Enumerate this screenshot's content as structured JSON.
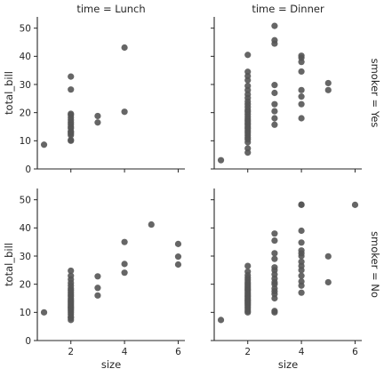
{
  "chart_data": {
    "type": "scatter",
    "x_variable": "size",
    "y_variable": "total_bill",
    "xlim": [
      0.75,
      6.25
    ],
    "ylim": [
      0,
      54
    ],
    "x_ticks": [
      2,
      4,
      6
    ],
    "y_ticks": [
      0,
      10,
      20,
      30,
      40,
      50
    ],
    "grid": false,
    "marker_color": "#555555",
    "axis_color": "#262626",
    "columns": [
      {
        "label": "time = Lunch"
      },
      {
        "label": "time = Dinner"
      }
    ],
    "rows": [
      {
        "label": "smoker = Yes"
      },
      {
        "label": "smoker = No"
      }
    ],
    "panels": [
      {
        "row": 0,
        "col": 0,
        "x_label": "",
        "y_label": "total_bill",
        "points": [
          [
            1,
            8.6
          ],
          [
            2,
            10.0
          ],
          [
            2,
            10.3
          ],
          [
            2,
            12.0
          ],
          [
            2,
            12.5
          ],
          [
            2,
            13.0
          ],
          [
            2,
            13.4
          ],
          [
            2,
            14.5
          ],
          [
            2,
            15.0
          ],
          [
            2,
            15.8
          ],
          [
            2,
            16.5
          ],
          [
            2,
            17.4
          ],
          [
            2,
            18.3
          ],
          [
            2,
            19.2
          ],
          [
            2,
            19.6
          ],
          [
            2,
            28.2
          ],
          [
            2,
            32.8
          ],
          [
            3,
            18.8
          ],
          [
            3,
            16.5
          ],
          [
            4,
            43.1
          ],
          [
            4,
            20.3
          ]
        ]
      },
      {
        "row": 0,
        "col": 1,
        "x_label": "",
        "y_label": "",
        "points": [
          [
            1,
            3.1
          ],
          [
            2,
            5.8
          ],
          [
            2,
            7.3
          ],
          [
            2,
            9.5
          ],
          [
            2,
            10.5
          ],
          [
            2,
            11.2
          ],
          [
            2,
            12.0
          ],
          [
            2,
            12.8
          ],
          [
            2,
            13.5
          ],
          [
            2,
            14.3
          ],
          [
            2,
            15.0
          ],
          [
            2,
            15.7
          ],
          [
            2,
            16.3
          ],
          [
            2,
            17.0
          ],
          [
            2,
            17.7
          ],
          [
            2,
            18.5
          ],
          [
            2,
            19.4
          ],
          [
            2,
            20.3
          ],
          [
            2,
            21.0
          ],
          [
            2,
            22.0
          ],
          [
            2,
            23.0
          ],
          [
            2,
            24.0
          ],
          [
            2,
            25.2
          ],
          [
            2,
            26.5
          ],
          [
            2,
            28.0
          ],
          [
            2,
            29.5
          ],
          [
            2,
            31.5
          ],
          [
            2,
            33.0
          ],
          [
            2,
            34.5
          ],
          [
            2,
            40.5
          ],
          [
            3,
            15.7
          ],
          [
            3,
            18.0
          ],
          [
            3,
            20.5
          ],
          [
            3,
            23.0
          ],
          [
            3,
            27.0
          ],
          [
            3,
            29.8
          ],
          [
            3,
            44.5
          ],
          [
            3,
            45.7
          ],
          [
            3,
            50.8
          ],
          [
            4,
            18.0
          ],
          [
            4,
            23.0
          ],
          [
            4,
            25.7
          ],
          [
            4,
            28.0
          ],
          [
            4,
            34.6
          ],
          [
            4,
            38.0
          ],
          [
            4,
            39.5
          ],
          [
            4,
            40.2
          ],
          [
            5,
            28.0
          ],
          [
            5,
            30.5
          ]
        ]
      },
      {
        "row": 1,
        "col": 0,
        "x_label": "size",
        "y_label": "total_bill",
        "points": [
          [
            1,
            10.0
          ],
          [
            2,
            7.3
          ],
          [
            2,
            8.0
          ],
          [
            2,
            8.5
          ],
          [
            2,
            9.3
          ],
          [
            2,
            10.0
          ],
          [
            2,
            10.7
          ],
          [
            2,
            11.3
          ],
          [
            2,
            11.8
          ],
          [
            2,
            12.3
          ],
          [
            2,
            12.8
          ],
          [
            2,
            13.3
          ],
          [
            2,
            13.8
          ],
          [
            2,
            14.3
          ],
          [
            2,
            15.0
          ],
          [
            2,
            15.7
          ],
          [
            2,
            16.3
          ],
          [
            2,
            17.0
          ],
          [
            2,
            17.8
          ],
          [
            2,
            18.5
          ],
          [
            2,
            19.5
          ],
          [
            2,
            20.5
          ],
          [
            2,
            21.7
          ],
          [
            2,
            23.0
          ],
          [
            2,
            24.8
          ],
          [
            3,
            16.0
          ],
          [
            3,
            18.7
          ],
          [
            3,
            22.8
          ],
          [
            4,
            24.1
          ],
          [
            4,
            27.2
          ],
          [
            4,
            35.0
          ],
          [
            5,
            41.2
          ],
          [
            6,
            27.0
          ],
          [
            6,
            29.8
          ],
          [
            6,
            34.3
          ]
        ]
      },
      {
        "row": 1,
        "col": 1,
        "x_label": "size",
        "y_label": "",
        "points": [
          [
            1,
            7.3
          ],
          [
            2,
            10.0
          ],
          [
            2,
            10.5
          ],
          [
            2,
            11.2
          ],
          [
            2,
            11.8
          ],
          [
            2,
            12.5
          ],
          [
            2,
            13.0
          ],
          [
            2,
            13.5
          ],
          [
            2,
            14.0
          ],
          [
            2,
            14.5
          ],
          [
            2,
            15.0
          ],
          [
            2,
            15.5
          ],
          [
            2,
            16.0
          ],
          [
            2,
            16.6
          ],
          [
            2,
            17.2
          ],
          [
            2,
            17.8
          ],
          [
            2,
            18.3
          ],
          [
            2,
            18.8
          ],
          [
            2,
            19.4
          ],
          [
            2,
            20.0
          ],
          [
            2,
            20.7
          ],
          [
            2,
            21.5
          ],
          [
            2,
            22.3
          ],
          [
            2,
            23.2
          ],
          [
            2,
            24.5
          ],
          [
            2,
            26.5
          ],
          [
            3,
            10.0
          ],
          [
            3,
            10.5
          ],
          [
            3,
            15.0
          ],
          [
            3,
            16.5
          ],
          [
            3,
            17.5
          ],
          [
            3,
            18.5
          ],
          [
            3,
            20.0
          ],
          [
            3,
            20.7
          ],
          [
            3,
            22.0
          ],
          [
            3,
            23.5
          ],
          [
            3,
            25.0
          ],
          [
            3,
            26.0
          ],
          [
            3,
            29.0
          ],
          [
            3,
            31.0
          ],
          [
            3,
            35.5
          ],
          [
            3,
            38.0
          ],
          [
            4,
            17.0
          ],
          [
            4,
            19.5
          ],
          [
            4,
            21.0
          ],
          [
            4,
            23.0
          ],
          [
            4,
            25.0
          ],
          [
            4,
            26.5
          ],
          [
            4,
            28.0
          ],
          [
            4,
            30.0
          ],
          [
            4,
            31.0
          ],
          [
            4,
            32.0
          ],
          [
            4,
            34.8
          ],
          [
            4,
            39.0
          ],
          [
            4,
            48.2
          ],
          [
            4,
            48.3
          ],
          [
            5,
            20.7
          ],
          [
            5,
            29.9
          ],
          [
            6,
            48.2
          ]
        ]
      }
    ]
  }
}
